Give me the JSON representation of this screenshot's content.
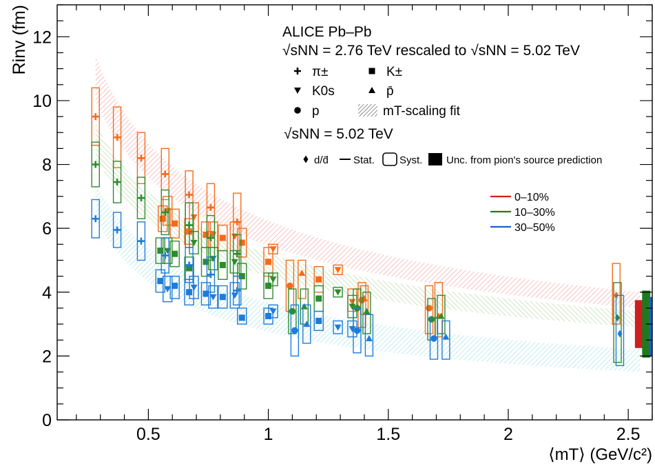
{
  "chart_data": {
    "type": "scatter",
    "title": "ALICE Pb–Pb",
    "subtitle_rescaled": "√sNN = 2.76 TeV rescaled to √sNN = 5.02 TeV",
    "subtitle_measured": "√sNN = 5.02 TeV",
    "xlabel": "⟨mT⟩ (GeV/c²)",
    "ylabel": "Rinv (fm)",
    "xlim": [
      0.12,
      2.6
    ],
    "ylim": [
      0,
      13
    ],
    "xticks": [
      0.5,
      1,
      1.5,
      2,
      2.5
    ],
    "xtick_labels": [
      "0.5",
      "1",
      "1.5",
      "2",
      "2.5"
    ],
    "yticks": [
      0,
      2,
      4,
      6,
      8,
      10,
      12
    ],
    "ytick_labels": [
      "0",
      "2",
      "4",
      "6",
      "8",
      "10",
      "12"
    ],
    "legend_species": [
      {
        "marker": "cross",
        "label": "π±"
      },
      {
        "marker": "square",
        "label": "K±"
      },
      {
        "marker": "triangle-down",
        "label": "K0s"
      },
      {
        "marker": "triangle-up",
        "label": "p̄"
      },
      {
        "marker": "circle",
        "label": "p"
      },
      {
        "marker": "hatch",
        "label": "mT-scaling fit"
      }
    ],
    "legend_unc": [
      {
        "marker": "diamond",
        "label": "d/d̄"
      },
      {
        "marker": "line",
        "label": "Stat."
      },
      {
        "marker": "box",
        "label": "Syst."
      },
      {
        "marker": "filled-box",
        "label": "Unc. from pion's source prediction"
      }
    ],
    "legend_placement": "top-right",
    "series": [
      {
        "name": "0–10%",
        "color": "#f26b1d",
        "line_color": "#cc1f1f",
        "band_color": "#f5a3a3",
        "fit_band": {
          "x": [
            0.28,
            2.55
          ],
          "lower_at_x1": 10.0,
          "upper_at_x1": 11.4,
          "lower_at_x2": 3.5,
          "upper_at_x2": 4.0
        },
        "points": [
          {
            "species": "pi",
            "x": 0.28,
            "y": 9.5,
            "syst_lo": 8.6,
            "syst_hi": 10.4
          },
          {
            "species": "pi",
            "x": 0.37,
            "y": 8.85,
            "syst_lo": 7.9,
            "syst_hi": 9.8
          },
          {
            "species": "pi",
            "x": 0.47,
            "y": 8.2,
            "syst_lo": 7.4,
            "syst_hi": 9.0
          },
          {
            "species": "pi",
            "x": 0.57,
            "y": 7.7,
            "syst_lo": 6.9,
            "syst_hi": 8.5
          },
          {
            "species": "pi",
            "x": 0.67,
            "y": 7.05,
            "syst_lo": 6.3,
            "syst_hi": 7.8
          },
          {
            "species": "pi",
            "x": 0.76,
            "y": 6.65,
            "syst_lo": 5.9,
            "syst_hi": 7.4
          },
          {
            "species": "pi",
            "x": 0.87,
            "y": 6.2,
            "syst_lo": 5.3,
            "syst_hi": 7.1
          },
          {
            "species": "K",
            "x": 0.56,
            "y": 6.3,
            "syst_lo": 5.9,
            "syst_hi": 6.7
          },
          {
            "species": "K",
            "x": 0.61,
            "y": 6.15,
            "syst_lo": 5.7,
            "syst_hi": 6.6
          },
          {
            "species": "K",
            "x": 0.67,
            "y": 5.9,
            "syst_lo": 5.5,
            "syst_hi": 6.3
          },
          {
            "species": "K",
            "x": 0.74,
            "y": 5.8,
            "syst_lo": 5.4,
            "syst_hi": 6.2
          },
          {
            "species": "K",
            "x": 0.81,
            "y": 5.7,
            "syst_lo": 5.3,
            "syst_hi": 6.1
          },
          {
            "species": "K",
            "x": 0.89,
            "y": 5.55,
            "syst_lo": 5.1,
            "syst_hi": 6.0
          },
          {
            "species": "K",
            "x": 1.0,
            "y": 4.95,
            "syst_lo": 4.5,
            "syst_hi": 5.4
          },
          {
            "species": "K",
            "x": 1.21,
            "y": 4.4,
            "syst_lo": 4.0,
            "syst_hi": 4.8
          },
          {
            "species": "K0",
            "x": 0.58,
            "y": 6.55,
            "syst_lo": 6.1,
            "syst_hi": 7.0
          },
          {
            "species": "K0",
            "x": 0.69,
            "y": 6.35,
            "syst_lo": 5.9,
            "syst_hi": 6.8
          },
          {
            "species": "K0",
            "x": 0.77,
            "y": 5.8,
            "syst_lo": 5.4,
            "syst_hi": 6.2
          },
          {
            "species": "K0",
            "x": 0.86,
            "y": 5.75,
            "syst_lo": 5.3,
            "syst_hi": 6.2
          },
          {
            "species": "K0",
            "x": 1.02,
            "y": 5.35,
            "syst_lo": 5.2,
            "syst_hi": 5.5
          },
          {
            "species": "K0",
            "x": 1.29,
            "y": 4.7,
            "syst_lo": 4.55,
            "syst_hi": 4.85
          },
          {
            "species": "K0",
            "x": 1.35,
            "y": 3.7,
            "syst_lo": 3.4,
            "syst_hi": 4.1
          },
          {
            "species": "p",
            "x": 1.09,
            "y": 4.2,
            "syst_lo": 3.4,
            "syst_hi": 5.0
          },
          {
            "species": "p",
            "x": 1.39,
            "y": 3.75,
            "syst_lo": 2.9,
            "syst_hi": 4.3
          },
          {
            "species": "p",
            "x": 1.67,
            "y": 3.5,
            "syst_lo": 2.7,
            "syst_hi": 4.2
          },
          {
            "species": "pbar",
            "x": 1.14,
            "y": 4.6,
            "syst_lo": 3.8,
            "syst_hi": 5.0
          },
          {
            "species": "pbar",
            "x": 1.4,
            "y": 3.8,
            "syst_lo": 3.3,
            "syst_hi": 4.2
          },
          {
            "species": "pbar",
            "x": 1.71,
            "y": 3.25,
            "syst_lo": 2.6,
            "syst_hi": 4.3
          },
          {
            "species": "d",
            "x": 2.45,
            "y": 3.9,
            "syst_lo": 3.0,
            "syst_hi": 4.9
          }
        ],
        "pion_unc": {
          "x": 2.545,
          "lo": 2.25,
          "hi": 3.75
        }
      },
      {
        "name": "10–30%",
        "color": "#2e8b2e",
        "line_color": "#1f7a1f",
        "band_color": "#b5d9a3",
        "fit_band": {
          "x": [
            0.28,
            2.55
          ],
          "lower_at_x1": 8.2,
          "upper_at_x1": 9.3,
          "lower_at_x2": 2.9,
          "upper_at_x2": 3.4
        },
        "points": [
          {
            "species": "pi",
            "x": 0.28,
            "y": 8.0,
            "syst_lo": 7.3,
            "syst_hi": 8.7
          },
          {
            "species": "pi",
            "x": 0.37,
            "y": 7.45,
            "syst_lo": 6.8,
            "syst_hi": 8.1
          },
          {
            "species": "pi",
            "x": 0.47,
            "y": 6.95,
            "syst_lo": 6.3,
            "syst_hi": 7.6
          },
          {
            "species": "pi",
            "x": 0.57,
            "y": 6.5,
            "syst_lo": 5.8,
            "syst_hi": 7.2
          },
          {
            "species": "pi",
            "x": 0.67,
            "y": 6.1,
            "syst_lo": 5.4,
            "syst_hi": 6.8
          },
          {
            "species": "pi",
            "x": 0.76,
            "y": 5.7,
            "syst_lo": 5.0,
            "syst_hi": 6.4
          },
          {
            "species": "pi",
            "x": 0.87,
            "y": 5.2,
            "syst_lo": 4.5,
            "syst_hi": 5.8
          },
          {
            "species": "K",
            "x": 0.55,
            "y": 5.3,
            "syst_lo": 4.9,
            "syst_hi": 5.7
          },
          {
            "species": "K",
            "x": 0.61,
            "y": 5.2,
            "syst_lo": 4.8,
            "syst_hi": 5.6
          },
          {
            "species": "K",
            "x": 0.67,
            "y": 4.75,
            "syst_lo": 4.4,
            "syst_hi": 5.1
          },
          {
            "species": "K",
            "x": 0.74,
            "y": 4.95,
            "syst_lo": 4.5,
            "syst_hi": 5.4
          },
          {
            "species": "K",
            "x": 0.81,
            "y": 4.85,
            "syst_lo": 4.4,
            "syst_hi": 5.3
          },
          {
            "species": "K",
            "x": 0.89,
            "y": 4.5,
            "syst_lo": 4.1,
            "syst_hi": 4.9
          },
          {
            "species": "K",
            "x": 1.0,
            "y": 4.2,
            "syst_lo": 3.8,
            "syst_hi": 4.6
          },
          {
            "species": "K",
            "x": 1.21,
            "y": 3.8,
            "syst_lo": 3.4,
            "syst_hi": 4.2
          },
          {
            "species": "K0",
            "x": 0.58,
            "y": 5.3,
            "syst_lo": 4.9,
            "syst_hi": 5.7
          },
          {
            "species": "K0",
            "x": 0.69,
            "y": 5.55,
            "syst_lo": 5.2,
            "syst_hi": 5.9
          },
          {
            "species": "K0",
            "x": 0.77,
            "y": 5.05,
            "syst_lo": 4.7,
            "syst_hi": 5.4
          },
          {
            "species": "K0",
            "x": 0.86,
            "y": 4.95,
            "syst_lo": 4.6,
            "syst_hi": 5.3
          },
          {
            "species": "K0",
            "x": 1.02,
            "y": 4.4,
            "syst_lo": 4.2,
            "syst_hi": 4.6
          },
          {
            "species": "K0",
            "x": 1.29,
            "y": 4.0,
            "syst_lo": 3.85,
            "syst_hi": 4.15
          },
          {
            "species": "K0",
            "x": 1.35,
            "y": 3.55,
            "syst_lo": 3.2,
            "syst_hi": 3.9
          },
          {
            "species": "p",
            "x": 1.1,
            "y": 3.4,
            "syst_lo": 2.7,
            "syst_hi": 4.1
          },
          {
            "species": "p",
            "x": 1.37,
            "y": 3.5,
            "syst_lo": 2.8,
            "syst_hi": 4.1
          },
          {
            "species": "p",
            "x": 1.68,
            "y": 3.15,
            "syst_lo": 2.5,
            "syst_hi": 3.8
          },
          {
            "species": "pbar",
            "x": 1.15,
            "y": 3.55,
            "syst_lo": 3.0,
            "syst_hi": 4.1
          },
          {
            "species": "pbar",
            "x": 1.41,
            "y": 3.4,
            "syst_lo": 2.7,
            "syst_hi": 4.0
          },
          {
            "species": "pbar",
            "x": 1.72,
            "y": 3.25,
            "syst_lo": 2.7,
            "syst_hi": 3.9
          },
          {
            "species": "d",
            "x": 2.455,
            "y": 3.2,
            "syst_lo": 1.8,
            "syst_hi": 4.3
          }
        ],
        "pion_unc": {
          "x": 2.575,
          "lo": 1.95,
          "hi": 4.05
        }
      },
      {
        "name": "30–50%",
        "color": "#1f7bd8",
        "line_color": "#1a5fd0",
        "band_color": "#a3e5e5",
        "fit_band": {
          "x": [
            0.28,
            2.55
          ],
          "lower_at_x1": 6.3,
          "upper_at_x1": 7.4,
          "lower_at_x2": 1.5,
          "upper_at_x2": 2.2
        },
        "points": [
          {
            "species": "pi",
            "x": 0.28,
            "y": 6.3,
            "syst_lo": 5.7,
            "syst_hi": 6.9
          },
          {
            "species": "pi",
            "x": 0.37,
            "y": 5.95,
            "syst_lo": 5.4,
            "syst_hi": 6.5
          },
          {
            "species": "pi",
            "x": 0.47,
            "y": 5.6,
            "syst_lo": 5.0,
            "syst_hi": 6.2
          },
          {
            "species": "pi",
            "x": 0.57,
            "y": 5.15,
            "syst_lo": 4.6,
            "syst_hi": 5.7
          },
          {
            "species": "pi",
            "x": 0.67,
            "y": 4.85,
            "syst_lo": 4.3,
            "syst_hi": 5.4
          },
          {
            "species": "pi",
            "x": 0.76,
            "y": 4.55,
            "syst_lo": 4.0,
            "syst_hi": 5.1
          },
          {
            "species": "pi",
            "x": 0.87,
            "y": 4.05,
            "syst_lo": 3.6,
            "syst_hi": 4.5
          },
          {
            "species": "K",
            "x": 0.55,
            "y": 4.35,
            "syst_lo": 4.0,
            "syst_hi": 4.7
          },
          {
            "species": "K",
            "x": 0.61,
            "y": 4.2,
            "syst_lo": 3.8,
            "syst_hi": 4.5
          },
          {
            "species": "K",
            "x": 0.67,
            "y": 4.0,
            "syst_lo": 3.6,
            "syst_hi": 4.4
          },
          {
            "species": "K",
            "x": 0.74,
            "y": 3.95,
            "syst_lo": 3.6,
            "syst_hi": 4.3
          },
          {
            "species": "K",
            "x": 0.81,
            "y": 3.85,
            "syst_lo": 3.5,
            "syst_hi": 4.2
          },
          {
            "species": "K",
            "x": 0.89,
            "y": 3.2,
            "syst_lo": 3.0,
            "syst_hi": 3.5
          },
          {
            "species": "K",
            "x": 1.0,
            "y": 3.25,
            "syst_lo": 3.0,
            "syst_hi": 3.5
          },
          {
            "species": "K",
            "x": 1.21,
            "y": 3.1,
            "syst_lo": 2.8,
            "syst_hi": 3.4
          },
          {
            "species": "K0",
            "x": 0.58,
            "y": 4.1,
            "syst_lo": 3.7,
            "syst_hi": 4.5
          },
          {
            "species": "K0",
            "x": 0.69,
            "y": 4.15,
            "syst_lo": 3.8,
            "syst_hi": 4.5
          },
          {
            "species": "K0",
            "x": 0.77,
            "y": 3.85,
            "syst_lo": 3.5,
            "syst_hi": 4.2
          },
          {
            "species": "K0",
            "x": 0.86,
            "y": 3.9,
            "syst_lo": 3.5,
            "syst_hi": 4.3
          },
          {
            "species": "K0",
            "x": 1.02,
            "y": 3.4,
            "syst_lo": 3.2,
            "syst_hi": 3.6
          },
          {
            "species": "K0",
            "x": 1.29,
            "y": 2.9,
            "syst_lo": 2.7,
            "syst_hi": 3.1
          },
          {
            "species": "K0",
            "x": 1.35,
            "y": 2.85,
            "syst_lo": 2.6,
            "syst_hi": 3.1
          },
          {
            "species": "p",
            "x": 1.11,
            "y": 2.8,
            "syst_lo": 2.0,
            "syst_hi": 3.6
          },
          {
            "species": "p",
            "x": 1.37,
            "y": 2.8,
            "syst_lo": 2.1,
            "syst_hi": 3.5
          },
          {
            "species": "p",
            "x": 1.69,
            "y": 2.55,
            "syst_lo": 1.9,
            "syst_hi": 3.2
          },
          {
            "species": "pbar",
            "x": 1.16,
            "y": 3.0,
            "syst_lo": 2.4,
            "syst_hi": 3.6
          },
          {
            "species": "pbar",
            "x": 1.42,
            "y": 2.55,
            "syst_lo": 2.0,
            "syst_hi": 3.3
          },
          {
            "species": "pbar",
            "x": 1.74,
            "y": 2.6,
            "syst_lo": 1.9,
            "syst_hi": 3.1
          },
          {
            "species": "d",
            "x": 2.465,
            "y": 2.7,
            "syst_lo": 1.7,
            "syst_hi": 3.9
          }
        ],
        "pion_unc": {
          "x": 2.605,
          "lo": 2.0,
          "hi": 3.85
        }
      }
    ]
  }
}
